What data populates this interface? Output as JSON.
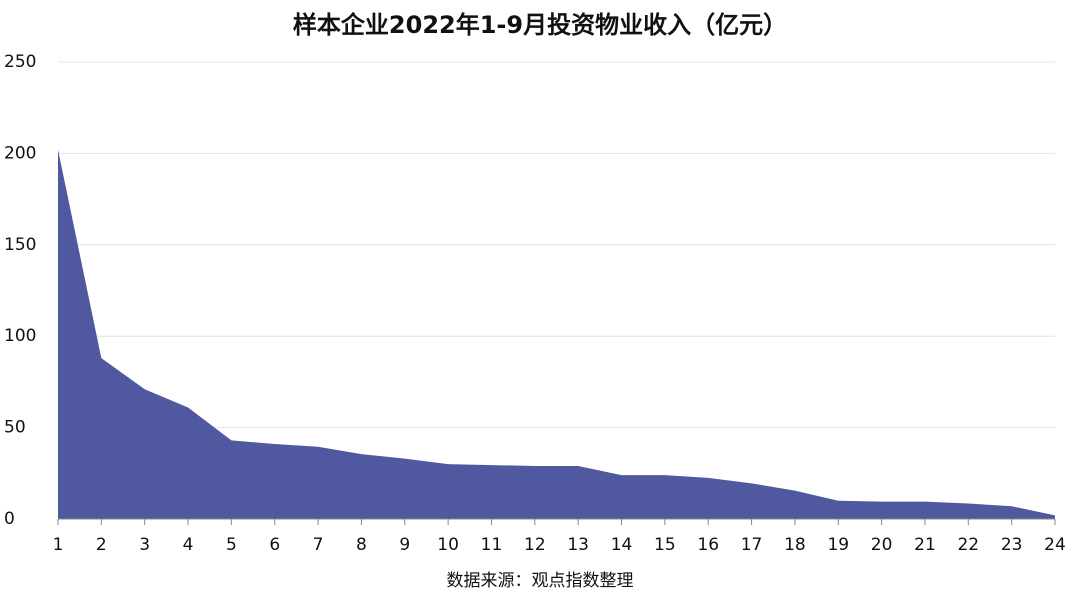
{
  "chart_data": {
    "type": "area",
    "title": "样本企业2022年1-9月投资物业收入（亿元）",
    "source": "数据来源：观点指数整理",
    "x": [
      1,
      2,
      3,
      4,
      5,
      6,
      7,
      8,
      9,
      10,
      11,
      12,
      13,
      14,
      15,
      16,
      17,
      18,
      19,
      20,
      21,
      22,
      23,
      24
    ],
    "values": [
      202,
      88,
      71,
      61,
      43,
      41,
      39.5,
      35.5,
      33,
      30,
      29.5,
      29,
      29,
      24,
      24,
      22.5,
      19.5,
      15.5,
      10,
      9.5,
      9.5,
      8.5,
      7,
      2
    ],
    "color": "#5058a0",
    "xlim": [
      1,
      24
    ],
    "xticks": [
      1,
      2,
      3,
      4,
      5,
      6,
      7,
      8,
      9,
      10,
      11,
      12,
      13,
      14,
      15,
      16,
      17,
      18,
      19,
      20,
      21,
      22,
      23,
      24
    ],
    "ylim": [
      0,
      250
    ],
    "yticks": [
      0,
      50,
      100,
      150,
      200,
      250
    ],
    "grid": true
  }
}
